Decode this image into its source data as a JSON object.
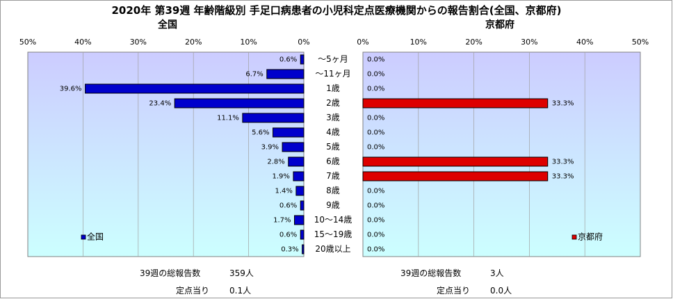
{
  "title": "2020年 第39週 年齢階級別 手足口病患者の小児科定点医療機関からの報告割合(全国、京都府)",
  "colors": {
    "plot_background_top": "#ccccff",
    "plot_background_bottom": "#ccffff",
    "national_bar": "#0000cc",
    "kyoto_bar": "#dd0000",
    "outer_border": "#999999"
  },
  "chart_data": [
    {
      "type": "bar",
      "orientation": "horizontal",
      "direction": "right-to-left",
      "title": "全国",
      "xlim": [
        0,
        50
      ],
      "ticks": [
        "50%",
        "40%",
        "30%",
        "20%",
        "10%",
        "0%"
      ],
      "grid": true,
      "legend_position": "bottom-left",
      "categories": [
        "〜5ヶ月",
        "〜11ヶ月",
        "1歳",
        "2歳",
        "3歳",
        "4歳",
        "5歳",
        "6歳",
        "7歳",
        "8歳",
        "9歳",
        "10〜14歳",
        "15〜19歳",
        "20歳以上"
      ],
      "series": [
        {
          "name": "全国",
          "values": [
            0.6,
            6.7,
            39.6,
            23.4,
            11.1,
            5.6,
            3.9,
            2.8,
            1.9,
            1.4,
            0.6,
            1.7,
            0.6,
            0.3
          ],
          "labels": [
            "0.6%",
            "6.7%",
            "39.6%",
            "23.4%",
            "11.1%",
            "5.6%",
            "3.9%",
            "2.8%",
            "1.9%",
            "1.4%",
            "0.6%",
            "1.7%",
            "0.6%",
            "0.3%"
          ]
        }
      ]
    },
    {
      "type": "bar",
      "orientation": "horizontal",
      "direction": "left-to-right",
      "title": "京都府",
      "xlim": [
        0,
        50
      ],
      "ticks": [
        "0%",
        "10%",
        "20%",
        "30%",
        "40%",
        "50%"
      ],
      "grid": true,
      "legend_position": "bottom-right",
      "categories": [
        "〜5ヶ月",
        "〜11ヶ月",
        "1歳",
        "2歳",
        "3歳",
        "4歳",
        "5歳",
        "6歳",
        "7歳",
        "8歳",
        "9歳",
        "10〜14歳",
        "15〜19歳",
        "20歳以上"
      ],
      "series": [
        {
          "name": "京都府",
          "values": [
            0.0,
            0.0,
            0.0,
            33.3,
            0.0,
            0.0,
            0.0,
            33.3,
            33.3,
            0.0,
            0.0,
            0.0,
            0.0,
            0.0
          ],
          "labels": [
            "0.0%",
            "0.0%",
            "0.0%",
            "33.3%",
            "0.0%",
            "0.0%",
            "0.0%",
            "33.3%",
            "33.3%",
            "0.0%",
            "0.0%",
            "0.0%",
            "0.0%",
            "0.0%"
          ]
        }
      ]
    }
  ],
  "footer": {
    "national": {
      "total_label": "39週の総報告数",
      "total_value": "359人",
      "per_site_label": "定点当り",
      "per_site_value": "0.1人"
    },
    "kyoto": {
      "total_label": "39週の総報告数",
      "total_value": "3人",
      "per_site_label": "定点当り",
      "per_site_value": "0.0人"
    }
  }
}
